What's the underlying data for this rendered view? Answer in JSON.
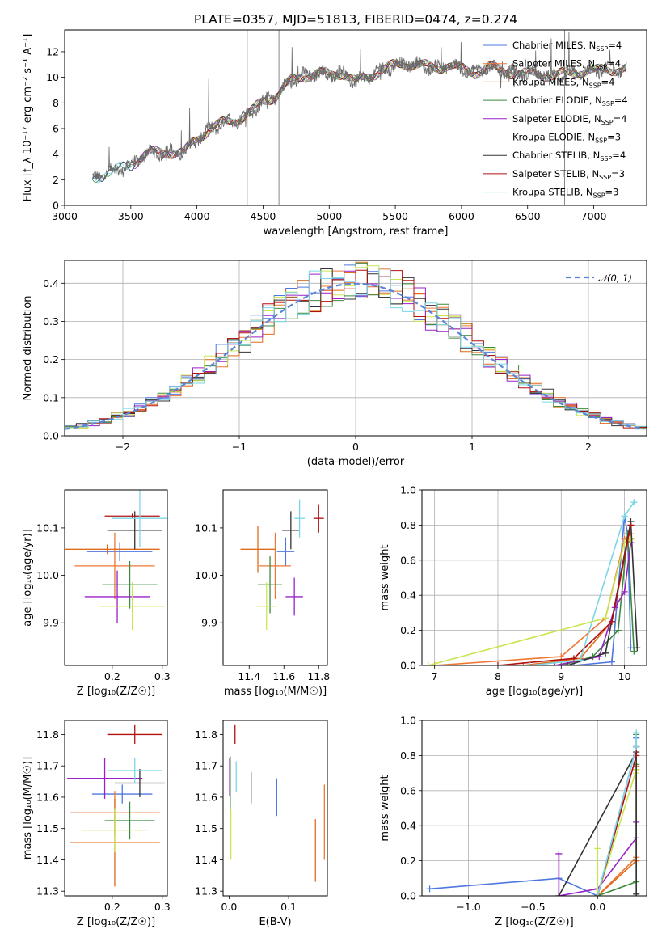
{
  "figure_title": "PLATE=0357, MJD=51813, FIBERID=0474, z=0.274",
  "series_colors": [
    "#4e78e0",
    "#ee7733",
    "#e06b1a",
    "#3c8a3c",
    "#9a20c8",
    "#c8e650",
    "#333333",
    "#b01010",
    "#7ad6e6"
  ],
  "chart_data": [
    {
      "id": "spectrum",
      "type": "line",
      "title": "",
      "xlabel": "wavelength [Angstrom, rest frame]",
      "ylabel": "Flux [f_λ 10⁻¹⁷ erg cm⁻² s⁻¹ A⁻¹]",
      "xlim": [
        3000,
        7400
      ],
      "ylim": [
        0,
        13.7
      ],
      "xticks": [
        3000,
        3500,
        4000,
        4500,
        5000,
        5500,
        6000,
        6500,
        7000
      ],
      "yticks": [
        0,
        2,
        4,
        6,
        8,
        10,
        12
      ],
      "grid": false,
      "legend_position": "top-right",
      "legend": [
        {
          "label": "Chabrier MILES, N",
          "sub": "SSP",
          "tail": "=4"
        },
        {
          "label": "Salpeter MILES, N",
          "sub": "SSP",
          "tail": "=4"
        },
        {
          "label": "Kroupa MILES, N",
          "sub": "SSP",
          "tail": "=4"
        },
        {
          "label": "Chabrier ELODIE, N",
          "sub": "SSP",
          "tail": "=4"
        },
        {
          "label": "Salpeter ELODIE, N",
          "sub": "SSP",
          "tail": "=4"
        },
        {
          "label": "Kroupa ELODIE, N",
          "sub": "SSP",
          "tail": "=3"
        },
        {
          "label": "Chabrier STELIB, N",
          "sub": "SSP",
          "tail": "=4"
        },
        {
          "label": "Salpeter STELIB, N",
          "sub": "SSP",
          "tail": "=3"
        },
        {
          "label": "Kroupa STELIB, N",
          "sub": "SSP",
          "tail": "=3"
        }
      ],
      "data_curve": {
        "name": "data",
        "x": [
          3210,
          3300,
          3400,
          3500,
          3600,
          3700,
          3800,
          3900,
          4000,
          4100,
          4200,
          4300,
          4400,
          4500,
          4600,
          4700,
          4800,
          4900,
          5000,
          5100,
          5200,
          5300,
          5400,
          5500,
          5600,
          5700,
          5800,
          5900,
          6000,
          6100,
          6200,
          6300,
          6400,
          6500,
          6600,
          6700,
          6800,
          6900,
          7000,
          7100,
          7200
        ],
        "y": [
          2.0,
          2.5,
          2.8,
          3.1,
          4.0,
          4.1,
          4.2,
          4.1,
          5.2,
          6.0,
          6.4,
          6.7,
          7.2,
          8.1,
          8.6,
          9.6,
          10.1,
          10.3,
          10.2,
          10.4,
          9.6,
          10.1,
          10.6,
          10.9,
          11.1,
          10.9,
          10.7,
          11.0,
          10.6,
          10.4,
          10.8,
          10.5,
          10.4,
          10.2,
          10.3,
          10.1,
          10.3,
          10.5,
          10.4,
          10.7,
          10.6
        ]
      }
    },
    {
      "id": "residuals",
      "type": "step",
      "xlabel": "(data-model)/error",
      "ylabel": "Normed distribution",
      "xlim": [
        -2.5,
        2.5
      ],
      "ylim": [
        0,
        0.46
      ],
      "xticks": [
        -2,
        -1,
        0,
        1,
        2
      ],
      "yticks": [
        0.0,
        0.1,
        0.2,
        0.3,
        0.4
      ],
      "grid": true,
      "bin_width": 0.1,
      "legend_position": "top-right",
      "gaussian_label": "𝒩(0, 1)",
      "gaussian_color": "#5b84d6"
    },
    {
      "id": "age-vs-z",
      "type": "errorbar",
      "xlabel": "Z [log₁₀(Z/Z☉)]",
      "ylabel": "age  [log₁₀(age/yr)]",
      "xlim": [
        0.105,
        0.31
      ],
      "ylim": [
        9.81,
        10.18
      ],
      "xticks": [
        0.2,
        0.3
      ],
      "yticks": [
        9.9,
        10.0,
        10.1
      ],
      "grid": false,
      "points": [
        {
          "x": 0.215,
          "xerr": 0.065,
          "y": 10.05,
          "yerr": 0.02
        },
        {
          "x": 0.205,
          "xerr": 0.08,
          "y": 10.02,
          "yerr": 0.07
        },
        {
          "x": 0.19,
          "xerr": 0.105,
          "y": 10.055,
          "yerr": 0.01
        },
        {
          "x": 0.235,
          "xerr": 0.055,
          "y": 9.98,
          "yerr": 0.05
        },
        {
          "x": 0.21,
          "xerr": 0.065,
          "y": 9.955,
          "yerr": 0.055
        },
        {
          "x": 0.24,
          "xerr": 0.065,
          "y": 9.935,
          "yerr": 0.05
        },
        {
          "x": 0.245,
          "xerr": 0.055,
          "y": 10.095,
          "yerr": 0.04
        },
        {
          "x": 0.24,
          "xerr": 0.055,
          "y": 10.125,
          "yerr": 0.005
        },
        {
          "x": 0.255,
          "xerr": 0.055,
          "y": 10.12,
          "yerr": 0.06
        }
      ]
    },
    {
      "id": "age-vs-mass",
      "type": "errorbar",
      "xlabel": "mass [log₁₀(M/M☉)]",
      "ylabel": "",
      "xlim": [
        11.25,
        11.85
      ],
      "ylim": [
        9.81,
        10.18
      ],
      "xticks": [
        11.4,
        11.6,
        11.8
      ],
      "yticks": [
        9.9,
        10.0,
        10.1
      ],
      "grid": false,
      "points": [
        {
          "x": 11.61,
          "xerr": 0.05,
          "y": 10.05,
          "yerr": 0.03
        },
        {
          "x": 11.55,
          "xerr": 0.09,
          "y": 10.02,
          "yerr": 0.07
        },
        {
          "x": 11.45,
          "xerr": 0.1,
          "y": 10.055,
          "yerr": 0.05
        },
        {
          "x": 11.52,
          "xerr": 0.07,
          "y": 9.98,
          "yerr": 0.06
        },
        {
          "x": 11.66,
          "xerr": 0.05,
          "y": 9.955,
          "yerr": 0.04
        },
        {
          "x": 11.5,
          "xerr": 0.06,
          "y": 9.935,
          "yerr": 0.05
        },
        {
          "x": 11.64,
          "xerr": 0.05,
          "y": 10.095,
          "yerr": 0.04
        },
        {
          "x": 11.8,
          "xerr": 0.03,
          "y": 10.12,
          "yerr": 0.03
        },
        {
          "x": 11.69,
          "xerr": 0.03,
          "y": 10.12,
          "yerr": 0.04
        }
      ]
    },
    {
      "id": "weight-vs-age",
      "type": "line",
      "xlabel": "age  [log₁₀(age/yr)]",
      "ylabel": "mass weight",
      "xlim": [
        6.8,
        10.35
      ],
      "ylim": [
        0,
        1.0
      ],
      "xticks": [
        7,
        8,
        9,
        10
      ],
      "yticks": [
        0.0,
        0.2,
        0.4,
        0.6,
        0.8,
        1.0
      ],
      "grid": true,
      "series": [
        {
          "x": [
            9.2,
            9.8,
            10.0,
            10.05,
            10.1
          ],
          "y": [
            0.0,
            0.02,
            0.85,
            0.75,
            0.1
          ]
        },
        {
          "x": [
            7.0,
            9.0,
            9.7,
            10.0,
            10.1
          ],
          "y": [
            0.0,
            0.05,
            0.27,
            0.72,
            0.75
          ]
        },
        {
          "x": [
            8.4,
            9.3,
            9.8,
            10.05,
            10.1
          ],
          "y": [
            0.0,
            0.04,
            0.25,
            0.7,
            0.72
          ]
        },
        {
          "x": [
            9.0,
            9.5,
            9.9,
            10.05,
            10.15
          ],
          "y": [
            0.0,
            0.05,
            0.2,
            0.75,
            0.08
          ]
        },
        {
          "x": [
            8.9,
            9.6,
            9.85,
            10.0,
            10.1
          ],
          "y": [
            0.0,
            0.05,
            0.33,
            0.42,
            0.7
          ]
        },
        {
          "x": [
            6.9,
            9.7,
            10.0,
            10.1
          ],
          "y": [
            0.0,
            0.27,
            0.7,
            0.72
          ]
        },
        {
          "x": [
            9.1,
            9.7,
            10.1,
            10.2
          ],
          "y": [
            0.0,
            0.07,
            0.82,
            0.1
          ]
        },
        {
          "x": [
            8.0,
            9.2,
            9.8,
            10.1
          ],
          "y": [
            0.0,
            0.04,
            0.25,
            0.8
          ]
        },
        {
          "x": [
            8.5,
            9.3,
            10.0,
            10.15
          ],
          "y": [
            0.0,
            0.03,
            0.85,
            0.93
          ]
        }
      ]
    },
    {
      "id": "mass-vs-z",
      "type": "errorbar",
      "xlabel": "Z [log₁₀(Z/Z☉)]",
      "ylabel": "mass [log₁₀(M/M☉)]",
      "xlim": [
        0.105,
        0.31
      ],
      "ylim": [
        11.285,
        11.845
      ],
      "xticks": [
        0.2,
        0.3
      ],
      "yticks": [
        11.3,
        11.4,
        11.5,
        11.6,
        11.7,
        11.8
      ],
      "grid": false,
      "points": [
        {
          "x": 0.22,
          "xerr": 0.06,
          "y": 11.61,
          "yerr": 0.03
        },
        {
          "x": 0.205,
          "xerr": 0.09,
          "y": 11.55,
          "yerr": 0.07
        },
        {
          "x": 0.205,
          "xerr": 0.09,
          "y": 11.455,
          "yerr": 0.14
        },
        {
          "x": 0.235,
          "xerr": 0.05,
          "y": 11.525,
          "yerr": 0.06
        },
        {
          "x": 0.185,
          "xerr": 0.075,
          "y": 11.66,
          "yerr": 0.065
        },
        {
          "x": 0.205,
          "xerr": 0.065,
          "y": 11.495,
          "yerr": 0.07
        },
        {
          "x": 0.255,
          "xerr": 0.05,
          "y": 11.645,
          "yerr": 0.045
        },
        {
          "x": 0.245,
          "xerr": 0.055,
          "y": 11.8,
          "yerr": 0.03
        },
        {
          "x": 0.245,
          "xerr": 0.055,
          "y": 11.685,
          "yerr": 0.04
        }
      ]
    },
    {
      "id": "mass-vs-ebv",
      "type": "errorbar",
      "xlabel": "E(B-V)",
      "ylabel": "",
      "xlim": [
        -0.01,
        0.165
      ],
      "ylim": [
        11.285,
        11.845
      ],
      "xticks": [
        0.0,
        0.1
      ],
      "yticks": [
        11.3,
        11.4,
        11.5,
        11.6,
        11.7,
        11.8
      ],
      "grid": false,
      "points": [
        {
          "x": 0.08,
          "xerr": 0.0,
          "y": 11.6,
          "yerr": 0.06
        },
        {
          "x": 0.16,
          "xerr": 0.0,
          "y": 11.52,
          "yerr": 0.12
        },
        {
          "x": 0.145,
          "xerr": 0.0,
          "y": 11.43,
          "yerr": 0.1
        },
        {
          "x": 0.002,
          "xerr": 0.0,
          "y": 11.57,
          "yerr": 0.16
        },
        {
          "x": 0.001,
          "xerr": 0.0,
          "y": 11.665,
          "yerr": 0.06
        },
        {
          "x": 0.003,
          "xerr": 0.0,
          "y": 11.48,
          "yerr": 0.08
        },
        {
          "x": 0.037,
          "xerr": 0.0,
          "y": 11.63,
          "yerr": 0.05
        },
        {
          "x": 0.01,
          "xerr": 0.0,
          "y": 11.8,
          "yerr": 0.03
        },
        {
          "x": 0.012,
          "xerr": 0.0,
          "y": 11.665,
          "yerr": 0.05
        }
      ]
    },
    {
      "id": "weight-vs-z",
      "type": "line",
      "xlabel": "Z [log₁₀(Z/Z☉)]",
      "ylabel": "mass weight",
      "xlim": [
        -1.36,
        0.38
      ],
      "ylim": [
        0,
        1.0
      ],
      "xticks": [
        -1.0,
        -0.5,
        0.0
      ],
      "yticks": [
        0.0,
        0.2,
        0.4,
        0.6,
        0.8,
        1.0
      ],
      "grid": true,
      "series": [
        {
          "x": [
            -1.3,
            -0.3,
            0.0,
            0.3,
            0.3
          ],
          "y": [
            0.04,
            0.1,
            0.0,
            0.85,
            0.9
          ]
        },
        {
          "x": [
            0.0,
            0.3,
            0.3
          ],
          "y": [
            0.0,
            0.22,
            0.74
          ]
        },
        {
          "x": [
            0.0,
            0.3,
            0.3
          ],
          "y": [
            0.0,
            0.2,
            0.72
          ]
        },
        {
          "x": [
            0.0,
            0.3,
            0.3,
            0.3
          ],
          "y": [
            0.0,
            0.08,
            0.75,
            0.92
          ]
        },
        {
          "x": [
            -0.3,
            -0.3,
            0.0,
            0.3,
            0.3
          ],
          "y": [
            0.24,
            0.0,
            0.04,
            0.33,
            0.42
          ]
        },
        {
          "x": [
            0.0,
            0.0,
            0.3,
            0.3
          ],
          "y": [
            0.27,
            0.0,
            0.72,
            0.7
          ]
        },
        {
          "x": [
            -0.3,
            0.3,
            0.3
          ],
          "y": [
            0.0,
            0.82,
            0.01
          ]
        },
        {
          "x": [
            0.0,
            0.3,
            0.3
          ],
          "y": [
            0.0,
            0.8,
            0.85
          ]
        },
        {
          "x": [
            0.0,
            0.3,
            0.3
          ],
          "y": [
            0.0,
            0.85,
            0.93
          ]
        }
      ]
    }
  ]
}
